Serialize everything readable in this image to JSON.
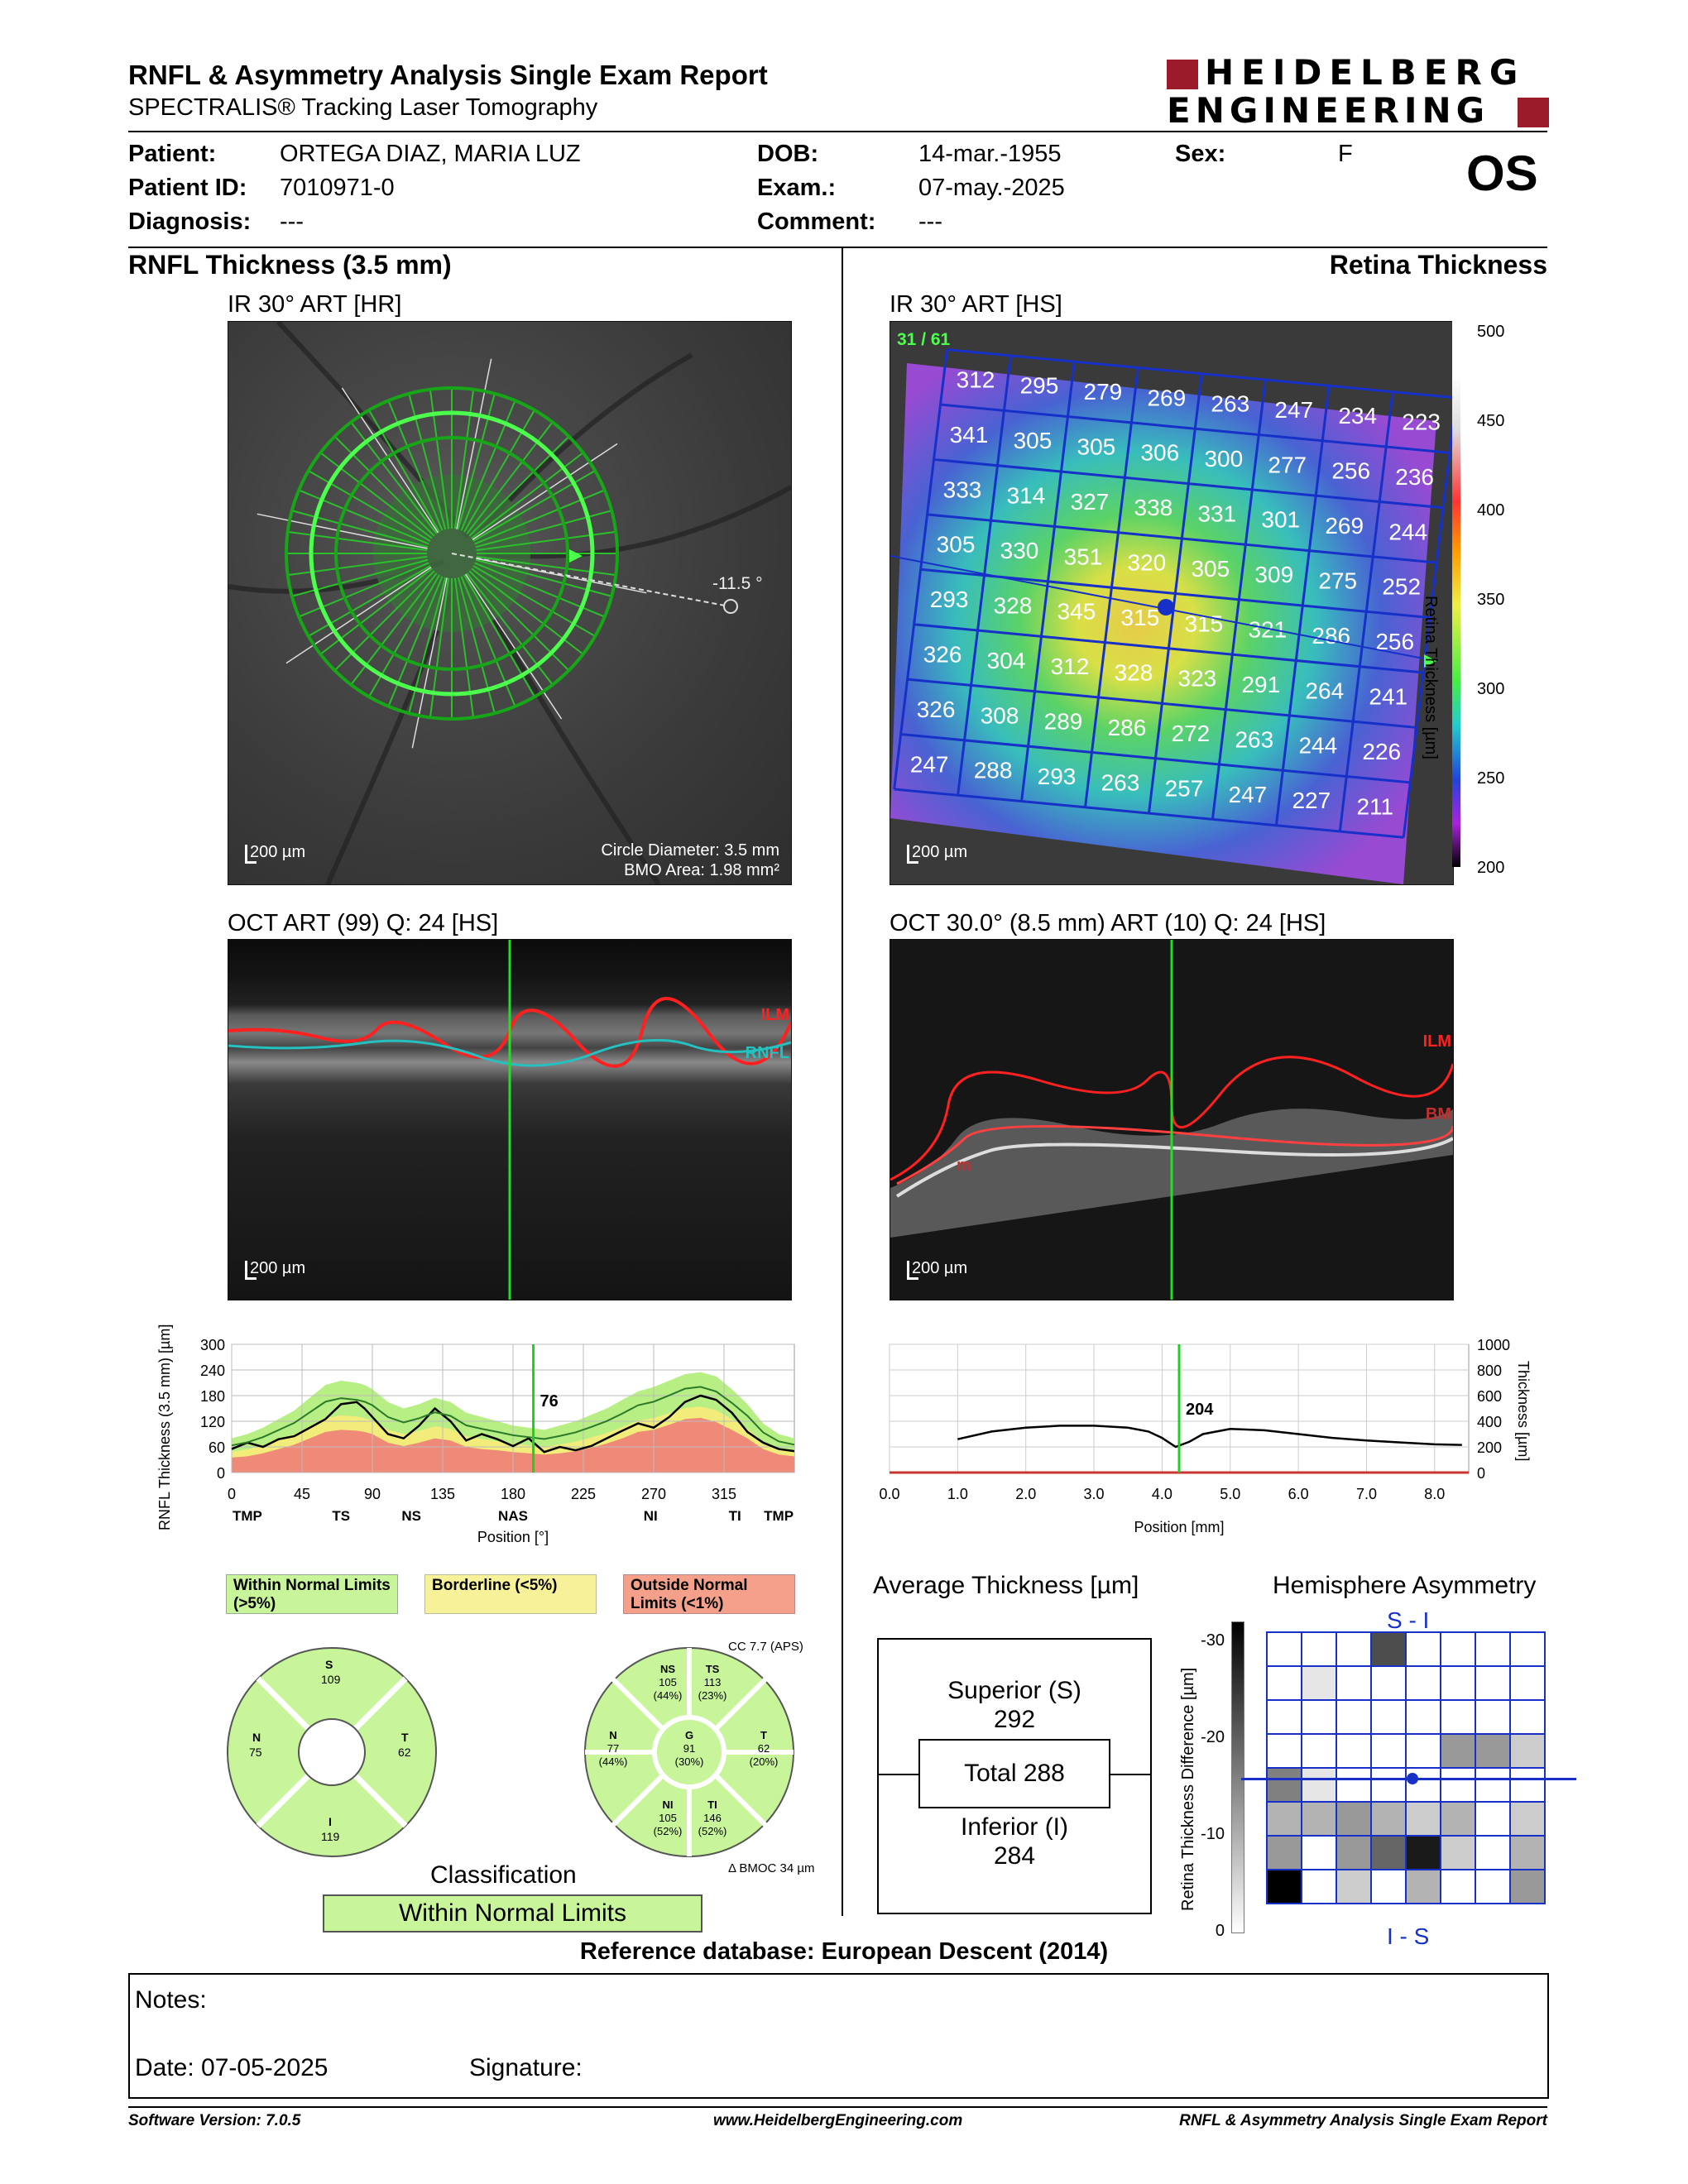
{
  "header": {
    "title": "RNFL & Asymmetry Analysis Single Exam Report",
    "subtitle": "SPECTRALIS® Tracking Laser Tomography",
    "brand_line1": "HEIDELBERG",
    "brand_line2": "ENGINEERING",
    "brand_color": "#9b1b2a",
    "eye": "OS"
  },
  "patient": {
    "patient_label": "Patient:",
    "patient_value": "ORTEGA DIAZ, MARIA LUZ",
    "id_label": "Patient ID:",
    "id_value": "7010971-0",
    "diag_label": "Diagnosis:",
    "diag_value": "---",
    "dob_label": "DOB:",
    "dob_value": "14-mar.-1955",
    "exam_label": "Exam.:",
    "exam_value": "07-may.-2025",
    "comment_label": "Comment:",
    "comment_value": "---",
    "sex_label": "Sex:",
    "sex_value": "F"
  },
  "sections": {
    "left": "RNFL Thickness (3.5 mm)",
    "right": "Retina Thickness"
  },
  "ir_left": {
    "title": "IR 30° ART [HR]",
    "scale": "200 µm",
    "angle": "-11.5 °",
    "circle_diam": "Circle Diameter: 3.5 mm",
    "bmo_area": "BMO Area: 1.98 mm²"
  },
  "ir_right": {
    "title": "IR 30° ART [HS]",
    "scale": "200 µm",
    "frame": "31 / 61",
    "grid": [
      [
        312,
        295,
        279,
        269,
        263,
        247,
        234,
        223
      ],
      [
        341,
        305,
        305,
        306,
        300,
        277,
        256,
        236
      ],
      [
        333,
        314,
        327,
        338,
        331,
        301,
        269,
        244
      ],
      [
        305,
        330,
        351,
        320,
        305,
        309,
        275,
        252
      ],
      [
        293,
        328,
        345,
        315,
        315,
        321,
        286,
        256
      ],
      [
        326,
        304,
        312,
        328,
        323,
        291,
        264,
        241
      ],
      [
        326,
        308,
        289,
        286,
        272,
        263,
        244,
        226
      ],
      [
        247,
        288,
        293,
        263,
        257,
        247,
        227,
        211
      ]
    ],
    "colorbar_ticks": [
      "500",
      "450",
      "400",
      "350",
      "300",
      "250",
      "200"
    ],
    "colorbar_label": "Retina Thickness [µm]"
  },
  "oct_left": {
    "title": "OCT ART (99) Q: 24 [HS]",
    "scale": "200 µm",
    "ilm": "ILM",
    "rnfl": "RNFL"
  },
  "oct_right": {
    "title": "OCT 30.0° (8.5 mm) ART (10) Q: 24 [HS]",
    "scale": "200 µm",
    "ilm": "ILM",
    "bm": "BM",
    "m": "m"
  },
  "chart_data": [
    {
      "type": "line",
      "ylabel": "RNFL Thickness (3.5 mm) [µm]",
      "xlabel": "Position [°]",
      "ylim": [
        0,
        300
      ],
      "xlim": [
        0,
        360
      ],
      "yticks": [
        "300",
        "240",
        "180",
        "120",
        "60",
        "0"
      ],
      "xticks": [
        "0",
        "45",
        "90",
        "135",
        "180",
        "225",
        "270",
        "315"
      ],
      "sector_labels": [
        "TMP",
        "TS",
        "NS",
        "NAS",
        "NI",
        "TI",
        "TMP"
      ],
      "cursor_label": "76",
      "x": [
        0,
        10,
        20,
        30,
        40,
        50,
        60,
        70,
        80,
        85,
        90,
        100,
        110,
        120,
        130,
        140,
        150,
        160,
        170,
        180,
        190,
        200,
        210,
        220,
        230,
        240,
        250,
        260,
        270,
        280,
        290,
        300,
        310,
        320,
        330,
        340,
        350,
        360
      ],
      "series": [
        {
          "values": [
            55,
            70,
            60,
            78,
            85,
            105,
            125,
            160,
            165,
            150,
            130,
            90,
            80,
            110,
            150,
            120,
            75,
            90,
            78,
            62,
            80,
            48,
            60,
            52,
            62,
            80,
            98,
            115,
            105,
            130,
            165,
            180,
            170,
            140,
            95,
            70,
            55,
            50
          ]
        }
      ],
      "normal_upper": [
        80,
        90,
        105,
        125,
        145,
        175,
        205,
        215,
        210,
        205,
        195,
        165,
        150,
        160,
        175,
        165,
        140,
        130,
        120,
        110,
        105,
        100,
        110,
        120,
        135,
        150,
        170,
        190,
        200,
        215,
        230,
        235,
        225,
        195,
        160,
        115,
        90,
        80
      ],
      "border_lower": [
        35,
        38,
        45,
        55,
        65,
        80,
        95,
        100,
        98,
        95,
        90,
        70,
        62,
        70,
        80,
        75,
        60,
        55,
        52,
        48,
        45,
        42,
        45,
        50,
        58,
        68,
        80,
        95,
        100,
        112,
        125,
        128,
        118,
        100,
        80,
        55,
        42,
        38
      ]
    },
    {
      "type": "line",
      "xlabel": "Position [mm]",
      "ylabel": "Thickness [µm]",
      "ylim": [
        0,
        1000
      ],
      "xlim": [
        0,
        8.5
      ],
      "yticks": [
        "1000",
        "800",
        "600",
        "400",
        "200",
        "0"
      ],
      "xticks": [
        "0.0",
        "1.0",
        "2.0",
        "3.0",
        "4.0",
        "5.0",
        "6.0",
        "7.0",
        "8.0"
      ],
      "cursor_label": "204",
      "x": [
        1.0,
        1.5,
        2.0,
        2.5,
        3.0,
        3.5,
        3.8,
        4.0,
        4.2,
        4.4,
        4.6,
        5.0,
        5.5,
        6.0,
        6.5,
        7.0,
        7.5,
        8.0,
        8.4
      ],
      "series": [
        {
          "values": [
            260,
            320,
            350,
            365,
            365,
            350,
            320,
            270,
            200,
            240,
            300,
            340,
            330,
            300,
            270,
            250,
            235,
            220,
            215
          ]
        }
      ]
    }
  ],
  "legend": {
    "wnl": "Within Normal Limits (>5%)",
    "bl": "Borderline (<5%)",
    "onl": "Outside Normal Limits (<1%)",
    "green": "#c8f59a",
    "yellow": "#f7f29a",
    "red": "#f4a08a"
  },
  "pie4": {
    "s": "S",
    "s_val": "109",
    "n": "N",
    "n_val": "75",
    "t": "T",
    "t_val": "62",
    "i": "I",
    "i_val": "119"
  },
  "pie6": {
    "cc": "CC 7.7 (APS)",
    "ns": "NS",
    "ns_val": "105",
    "ns_pct": "(44%)",
    "ts": "TS",
    "ts_val": "113",
    "ts_pct": "(23%)",
    "n": "N",
    "n_val": "77",
    "n_pct": "(44%)",
    "g": "G",
    "g_val": "91",
    "g_pct": "(30%)",
    "t": "T",
    "t_val": "62",
    "t_pct": "(20%)",
    "ni": "NI",
    "ni_val": "105",
    "ni_pct": "(52%)",
    "ti": "TI",
    "ti_val": "146",
    "ti_pct": "(52%)",
    "bmoc": "Δ BMOC 34 µm"
  },
  "classification": {
    "label": "Classification",
    "value": "Within Normal Limits"
  },
  "avg": {
    "title": "Average Thickness [µm]",
    "superior": "Superior (S)",
    "superior_val": "292",
    "total": "Total 288",
    "inferior": "Inferior (I)",
    "inferior_val": "284"
  },
  "asym": {
    "title": "Hemisphere Asymmetry",
    "top": "S - I",
    "bottom": "I - S",
    "ylabel": "Retina Thickness Difference [µm]",
    "ticks": [
      "-30",
      "-20",
      "-10",
      "0"
    ],
    "cells": [
      [
        0,
        0,
        0,
        7,
        0,
        0,
        0,
        0
      ],
      [
        0,
        1,
        0,
        0,
        0,
        0,
        0,
        0
      ],
      [
        0,
        0,
        0,
        0,
        0,
        0,
        0,
        0
      ],
      [
        0,
        0,
        0,
        0,
        0,
        4,
        4,
        2
      ],
      [
        5,
        1,
        0,
        0,
        0,
        0,
        0,
        0
      ],
      [
        3,
        3,
        4,
        3,
        2,
        3,
        0,
        2
      ],
      [
        4,
        0,
        4,
        6,
        9,
        2,
        0,
        3
      ],
      [
        10,
        0,
        2,
        0,
        3,
        0,
        0,
        4
      ]
    ]
  },
  "reference": "Reference database: European Descent (2014)",
  "notes": {
    "notes_label": "Notes:",
    "date_label": "Date: 07-05-2025",
    "signature_label": "Signature:"
  },
  "footer": {
    "software": "Software Version: 7.0.5",
    "url": "www.HeidelbergEngineering.com",
    "report": "RNFL & Asymmetry Analysis Single Exam Report"
  }
}
